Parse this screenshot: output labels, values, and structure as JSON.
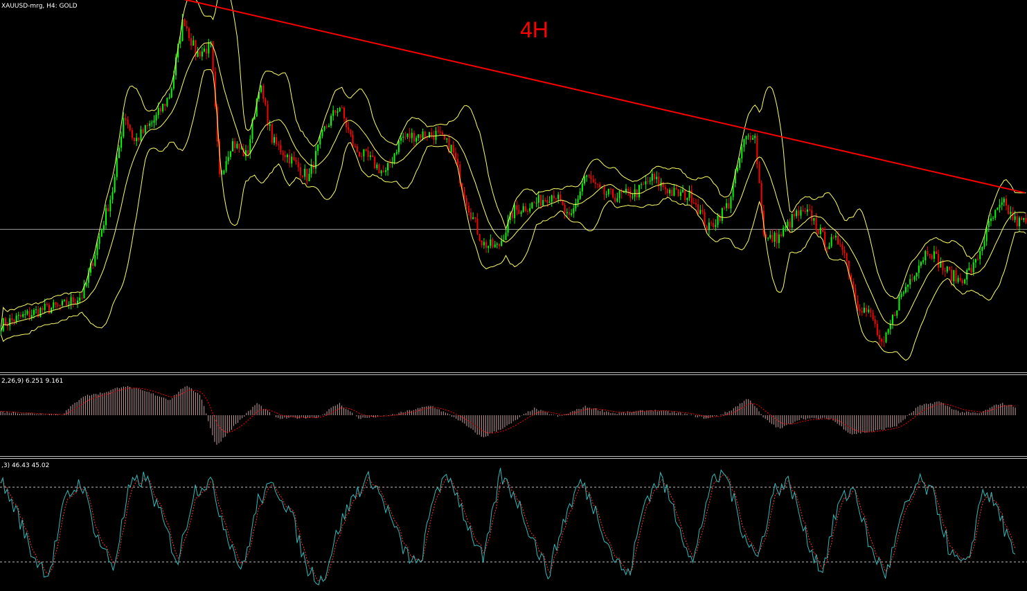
{
  "chart_data": [
    {
      "type": "candlestick",
      "symbol_caption": "XAUUSD-mrg, H4:  GOLD",
      "timeframe_label": "4H",
      "ylim": [
        0,
        100
      ],
      "colors": {
        "background": "#000000",
        "bull_candle": "#00ff00",
        "bear_candle": "#ff0000",
        "bands": "#ffff66",
        "trendline": "#ff0000",
        "level_line": "#a0a0a0"
      },
      "horizontal_level": 38,
      "trendline": {
        "x": [
          0.178,
          0.998
        ],
        "y": [
          101,
          48
        ]
      },
      "price_path": [
        {
          "x": 0.0,
          "y": 12
        },
        {
          "x": 0.02,
          "y": 14
        },
        {
          "x": 0.04,
          "y": 16
        },
        {
          "x": 0.06,
          "y": 17
        },
        {
          "x": 0.08,
          "y": 20
        },
        {
          "x": 0.095,
          "y": 35
        },
        {
          "x": 0.11,
          "y": 50
        },
        {
          "x": 0.12,
          "y": 70
        },
        {
          "x": 0.13,
          "y": 62
        },
        {
          "x": 0.15,
          "y": 68
        },
        {
          "x": 0.165,
          "y": 75
        },
        {
          "x": 0.178,
          "y": 96
        },
        {
          "x": 0.19,
          "y": 86
        },
        {
          "x": 0.205,
          "y": 88
        },
        {
          "x": 0.213,
          "y": 52
        },
        {
          "x": 0.225,
          "y": 62
        },
        {
          "x": 0.24,
          "y": 58
        },
        {
          "x": 0.252,
          "y": 78
        },
        {
          "x": 0.265,
          "y": 62
        },
        {
          "x": 0.28,
          "y": 58
        },
        {
          "x": 0.3,
          "y": 52
        },
        {
          "x": 0.315,
          "y": 65
        },
        {
          "x": 0.33,
          "y": 72
        },
        {
          "x": 0.345,
          "y": 60
        },
        {
          "x": 0.36,
          "y": 57
        },
        {
          "x": 0.375,
          "y": 53
        },
        {
          "x": 0.39,
          "y": 63
        },
        {
          "x": 0.41,
          "y": 64
        },
        {
          "x": 0.425,
          "y": 64
        },
        {
          "x": 0.44,
          "y": 60
        },
        {
          "x": 0.455,
          "y": 45
        },
        {
          "x": 0.47,
          "y": 34
        },
        {
          "x": 0.485,
          "y": 33
        },
        {
          "x": 0.5,
          "y": 43
        },
        {
          "x": 0.52,
          "y": 45
        },
        {
          "x": 0.54,
          "y": 48
        },
        {
          "x": 0.555,
          "y": 40
        },
        {
          "x": 0.57,
          "y": 53
        },
        {
          "x": 0.585,
          "y": 48
        },
        {
          "x": 0.6,
          "y": 47
        },
        {
          "x": 0.62,
          "y": 48
        },
        {
          "x": 0.635,
          "y": 52
        },
        {
          "x": 0.655,
          "y": 48
        },
        {
          "x": 0.675,
          "y": 47
        },
        {
          "x": 0.69,
          "y": 38
        },
        {
          "x": 0.71,
          "y": 45
        },
        {
          "x": 0.725,
          "y": 62
        },
        {
          "x": 0.735,
          "y": 65
        },
        {
          "x": 0.745,
          "y": 35
        },
        {
          "x": 0.76,
          "y": 36
        },
        {
          "x": 0.775,
          "y": 42
        },
        {
          "x": 0.79,
          "y": 42
        },
        {
          "x": 0.805,
          "y": 34
        },
        {
          "x": 0.82,
          "y": 35
        },
        {
          "x": 0.835,
          "y": 18
        },
        {
          "x": 0.85,
          "y": 14
        },
        {
          "x": 0.86,
          "y": 5
        },
        {
          "x": 0.875,
          "y": 18
        },
        {
          "x": 0.89,
          "y": 26
        },
        {
          "x": 0.905,
          "y": 33
        },
        {
          "x": 0.92,
          "y": 27
        },
        {
          "x": 0.935,
          "y": 24
        },
        {
          "x": 0.95,
          "y": 28
        },
        {
          "x": 0.965,
          "y": 40
        },
        {
          "x": 0.978,
          "y": 45
        },
        {
          "x": 0.99,
          "y": 40
        }
      ]
    },
    {
      "type": "histogram",
      "indicator_caption": "2,26,9) 6.251 9.161",
      "ylim": [
        -1,
        1
      ],
      "colors": {
        "bars": "#c8a0a0",
        "signal": "#ff0000"
      },
      "series_path": [
        {
          "x": 0.0,
          "y": 0.1
        },
        {
          "x": 0.03,
          "y": 0.05
        },
        {
          "x": 0.06,
          "y": 0.02
        },
        {
          "x": 0.08,
          "y": 0.55
        },
        {
          "x": 0.1,
          "y": 0.65
        },
        {
          "x": 0.12,
          "y": 0.85
        },
        {
          "x": 0.14,
          "y": 0.7
        },
        {
          "x": 0.165,
          "y": 0.45
        },
        {
          "x": 0.18,
          "y": 0.85
        },
        {
          "x": 0.195,
          "y": 0.6
        },
        {
          "x": 0.21,
          "y": -0.9
        },
        {
          "x": 0.225,
          "y": -0.4
        },
        {
          "x": 0.25,
          "y": 0.35
        },
        {
          "x": 0.27,
          "y": -0.1
        },
        {
          "x": 0.31,
          "y": -0.05
        },
        {
          "x": 0.33,
          "y": 0.35
        },
        {
          "x": 0.35,
          "y": -0.1
        },
        {
          "x": 0.38,
          "y": 0.0
        },
        {
          "x": 0.42,
          "y": 0.28
        },
        {
          "x": 0.445,
          "y": -0.1
        },
        {
          "x": 0.47,
          "y": -0.65
        },
        {
          "x": 0.495,
          "y": -0.3
        },
        {
          "x": 0.52,
          "y": 0.2
        },
        {
          "x": 0.545,
          "y": -0.05
        },
        {
          "x": 0.57,
          "y": 0.25
        },
        {
          "x": 0.6,
          "y": 0.05
        },
        {
          "x": 0.635,
          "y": 0.15
        },
        {
          "x": 0.665,
          "y": 0.05
        },
        {
          "x": 0.69,
          "y": -0.1
        },
        {
          "x": 0.71,
          "y": 0.1
        },
        {
          "x": 0.73,
          "y": 0.5
        },
        {
          "x": 0.745,
          "y": -0.1
        },
        {
          "x": 0.76,
          "y": -0.4
        },
        {
          "x": 0.78,
          "y": -0.1
        },
        {
          "x": 0.81,
          "y": -0.1
        },
        {
          "x": 0.83,
          "y": -0.55
        },
        {
          "x": 0.855,
          "y": -0.45
        },
        {
          "x": 0.875,
          "y": -0.3
        },
        {
          "x": 0.895,
          "y": 0.25
        },
        {
          "x": 0.915,
          "y": 0.4
        },
        {
          "x": 0.935,
          "y": 0.1
        },
        {
          "x": 0.955,
          "y": 0.05
        },
        {
          "x": 0.975,
          "y": 0.35
        },
        {
          "x": 0.99,
          "y": 0.25
        }
      ]
    },
    {
      "type": "line",
      "indicator_caption": ",3) 46.43 45.02",
      "ylim": [
        0,
        100
      ],
      "levels": [
        80,
        20
      ],
      "colors": {
        "main": "#33bbbb",
        "signal": "#ff3333",
        "levels": "#c0c0c0"
      },
      "series": [
        {
          "values": [
            85,
            60,
            25,
            10,
            70,
            85,
            40,
            15,
            80,
            88,
            55,
            20,
            78,
            85,
            45,
            12,
            70,
            82,
            60,
            15,
            5,
            48,
            75,
            88,
            62,
            30,
            15,
            80,
            86,
            50,
            20,
            90,
            72,
            40,
            10,
            55,
            85,
            60,
            25,
            8,
            70,
            88,
            55,
            18,
            80,
            92,
            48,
            22,
            78,
            84,
            40,
            12,
            66,
            80,
            30,
            10,
            58,
            85,
            72,
            25,
            15,
            80,
            60,
            20
          ]
        }
      ]
    }
  ]
}
